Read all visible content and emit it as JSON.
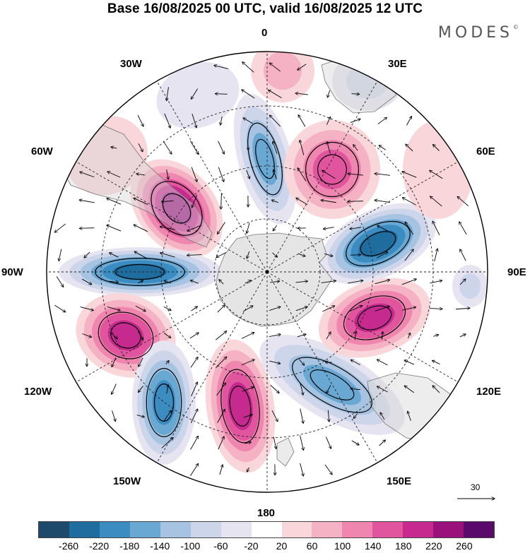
{
  "title": "Base 16/08/2025 00 UTC, valid 16/08/2025 12 UTC",
  "brand": "MODES",
  "brand_mark": "©",
  "longitude_labels": {
    "lon_0": "0",
    "lon_30e": "30E",
    "lon_60e": "60E",
    "lon_90e": "90E",
    "lon_120e": "120E",
    "lon_150e": "150E",
    "lon_180": "180",
    "lon_150w": "150W",
    "lon_120w": "120W",
    "lon_90w": "90W",
    "lon_60w": "60W",
    "lon_30w": "30W"
  },
  "vector_scale_label": "30",
  "colorbar": {
    "colors": [
      "#1d4a6b",
      "#1f6d9e",
      "#3a8cc1",
      "#6aa8d4",
      "#a6c4e2",
      "#cdd5ea",
      "#e6e4f1",
      "#ffffff",
      "#f9d6da",
      "#f5b2c4",
      "#ef86b0",
      "#e0559e",
      "#c62a8f",
      "#9a117c",
      "#5a0a6a"
    ],
    "ticks": [
      "-260",
      "-220",
      "-180",
      "-140",
      "-100",
      "-60",
      "-20",
      "20",
      "60",
      "100",
      "140",
      "180",
      "220",
      "260"
    ]
  }
}
